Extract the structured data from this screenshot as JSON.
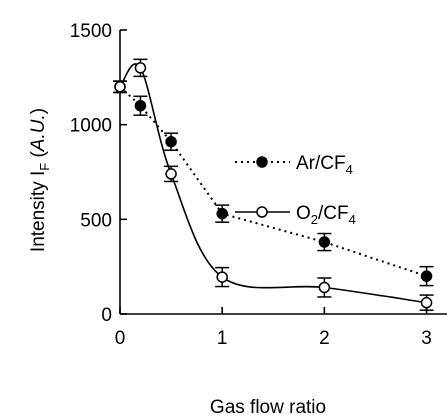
{
  "chart_data": {
    "type": "line",
    "xlabel": "Gas flow ratio",
    "ylabel": {
      "main": "Intensity I",
      "subscript": "F",
      "unit_open": " (",
      "unit": "A.U.",
      "unit_close": ")"
    },
    "xlim": [
      0,
      3.2
    ],
    "ylim": [
      0,
      1500
    ],
    "x_ticks": [
      0,
      1,
      2,
      3
    ],
    "y_ticks": [
      0,
      500,
      1000,
      1500
    ],
    "grid": false,
    "legend_position": "right",
    "series": [
      {
        "name": "Ar/CF",
        "name_sub": "4",
        "line_style": "dotted",
        "marker": "filled-circle",
        "x": [
          0,
          0.2,
          0.5,
          1,
          2,
          3
        ],
        "y": [
          1200,
          1100,
          910,
          530,
          380,
          200
        ],
        "error": [
          30,
          50,
          45,
          45,
          45,
          50
        ]
      },
      {
        "name": "O",
        "name_sub_mid": "2",
        "name_tail": "/CF",
        "name_sub": "4",
        "line_style": "solid-smooth",
        "marker": "open-circle",
        "x": [
          0,
          0.2,
          0.5,
          1,
          2,
          3
        ],
        "y": [
          1200,
          1300,
          740,
          195,
          140,
          60
        ],
        "error": [
          30,
          45,
          40,
          50,
          50,
          40
        ]
      }
    ]
  }
}
